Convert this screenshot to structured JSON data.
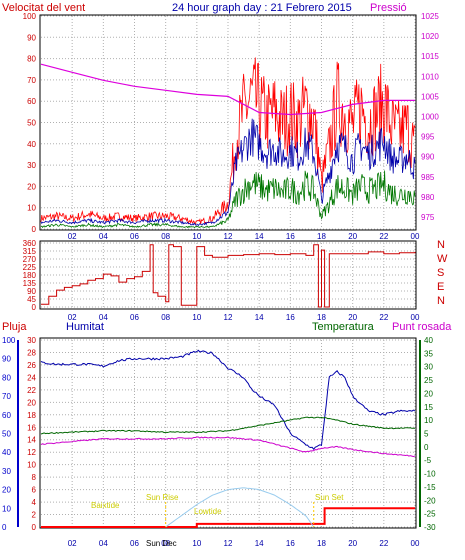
{
  "header": {
    "left_label": "Velocitat del vent",
    "title": "24 hour graph day : 21 Febrero 2015",
    "right_label": "Pressió"
  },
  "colors": {
    "wind_gust": "#ff0000",
    "wind_avg": "#0000aa",
    "wind_low": "#007700",
    "pressure": "#dd00dd",
    "direction": "#cc0000",
    "humidity": "#0000aa",
    "temperature": "#006600",
    "dewpoint": "#cc00cc",
    "rain": "#ff0000",
    "solar": "#99ccee",
    "sun_markers": "#ffcc00",
    "axis_left": "#cc0000",
    "axis_right_pressure": "#cc00cc",
    "axis_humidity": "#0000cc",
    "axis_temp": "#006600",
    "grid": "#b0b0b0"
  },
  "x_ticks": [
    "02",
    "04",
    "06",
    "08",
    "10",
    "12",
    "14",
    "16",
    "18",
    "20",
    "22",
    "00"
  ],
  "chart_data": [
    {
      "type": "line",
      "name": "wind-and-pressure",
      "x_unit": "hour",
      "x_range": [
        0,
        24
      ],
      "y_left_label": "Velocitat del vent",
      "y_left_range": [
        0,
        100
      ],
      "y_left_ticks": [
        0,
        10,
        20,
        30,
        40,
        50,
        60,
        70,
        80,
        90,
        100
      ],
      "y_right_label": "Pressió",
      "y_right_range": [
        972,
        1025
      ],
      "y_right_ticks": [
        975,
        980,
        985,
        990,
        995,
        1000,
        1005,
        1010,
        1015,
        1020,
        1025
      ],
      "grid": true,
      "series": [
        {
          "key": "gust",
          "axis": "left",
          "x": [
            0,
            1,
            2,
            3,
            4,
            5,
            6,
            7,
            8,
            9,
            10,
            11,
            12,
            12.5,
            13,
            13.5,
            14,
            14.5,
            15,
            15.5,
            16,
            16.5,
            17,
            17.5,
            18,
            18.5,
            19,
            19.5,
            20,
            20.5,
            21,
            21.5,
            22,
            22.5,
            23,
            23.5,
            24
          ],
          "y": [
            5,
            6,
            5,
            7,
            5,
            6,
            5,
            6,
            6,
            5,
            3,
            5,
            12,
            42,
            55,
            62,
            58,
            52,
            55,
            50,
            54,
            50,
            57,
            52,
            22,
            38,
            60,
            55,
            48,
            58,
            50,
            54,
            60,
            48,
            45,
            48,
            38
          ]
        },
        {
          "key": "average",
          "axis": "left",
          "x": [
            0,
            1,
            2,
            3,
            4,
            5,
            6,
            7,
            8,
            9,
            10,
            11,
            12,
            12.5,
            13,
            13.5,
            14,
            14.5,
            15,
            15.5,
            16,
            16.5,
            17,
            17.5,
            18,
            18.5,
            19,
            19.5,
            20,
            20.5,
            21,
            21.5,
            22,
            22.5,
            23,
            23.5,
            24
          ],
          "y": [
            3,
            4,
            3,
            4,
            3,
            4,
            3,
            4,
            4,
            3,
            2,
            3,
            8,
            30,
            38,
            44,
            40,
            36,
            38,
            34,
            37,
            34,
            40,
            36,
            14,
            26,
            40,
            38,
            32,
            40,
            35,
            38,
            42,
            33,
            32,
            34,
            28
          ]
        },
        {
          "key": "low",
          "axis": "left",
          "x": [
            0,
            1,
            2,
            3,
            4,
            5,
            6,
            7,
            8,
            9,
            10,
            11,
            12,
            12.5,
            13,
            13.5,
            14,
            14.5,
            15,
            15.5,
            16,
            16.5,
            17,
            17.5,
            18,
            18.5,
            19,
            19.5,
            20,
            20.5,
            21,
            21.5,
            22,
            22.5,
            23,
            23.5,
            24
          ],
          "y": [
            1,
            2,
            1,
            2,
            1,
            2,
            1,
            2,
            2,
            1,
            1,
            1,
            4,
            14,
            18,
            22,
            20,
            18,
            19,
            17,
            19,
            17,
            21,
            18,
            6,
            12,
            20,
            19,
            16,
            20,
            18,
            19,
            21,
            17,
            16,
            17,
            15
          ]
        },
        {
          "key": "pressure",
          "axis": "right",
          "x": [
            0,
            2,
            4,
            6,
            8,
            10,
            12,
            14,
            16,
            18,
            19,
            20,
            22,
            24
          ],
          "y": [
            1013,
            1011,
            1009,
            1007.5,
            1006.5,
            1005.5,
            1005,
            1001,
            1000.5,
            1001,
            1002,
            1003,
            1004,
            1004
          ]
        }
      ]
    },
    {
      "type": "line",
      "name": "wind-direction",
      "x_range": [
        0,
        24
      ],
      "y_range": [
        0,
        360
      ],
      "y_ticks": [
        0,
        45,
        90,
        135,
        180,
        225,
        270,
        315,
        360
      ],
      "y_tick_labels": [
        "0",
        "45",
        "90",
        "135",
        "180",
        "225",
        "270",
        "315",
        "360"
      ],
      "compass_labels": [
        "N",
        "W",
        "S",
        "E",
        "N"
      ],
      "series": [
        {
          "key": "direction",
          "x": [
            0,
            0.5,
            1,
            1.5,
            2,
            2.5,
            3,
            3.5,
            4,
            4.5,
            5,
            5.5,
            6,
            6.5,
            7,
            7.2,
            7.5,
            8,
            8.2,
            8.5,
            9,
            9.5,
            10,
            10.5,
            11,
            12,
            13,
            14,
            15,
            16,
            17,
            17.5,
            17.8,
            18,
            18.2,
            18.5,
            19,
            20,
            21,
            22,
            23,
            24
          ],
          "y": [
            15,
            60,
            95,
            110,
            120,
            130,
            150,
            160,
            185,
            175,
            140,
            160,
            170,
            200,
            350,
            80,
            60,
            30,
            350,
            340,
            10,
            10,
            340,
            290,
            280,
            290,
            295,
            300,
            295,
            300,
            290,
            350,
            0,
            320,
            0,
            300,
            300,
            300,
            310,
            300,
            305,
            310
          ]
        }
      ]
    },
    {
      "type": "line",
      "name": "humidity-temperature-rain",
      "x_range": [
        0,
        24
      ],
      "labels": {
        "rain": "Pluja",
        "humidity": "Humitat",
        "temperature": "Temperatura",
        "dewpoint": "Punt rosada"
      },
      "humidity_axis": {
        "range": [
          0,
          100
        ],
        "ticks": [
          0,
          10,
          20,
          30,
          40,
          50,
          60,
          70,
          80,
          90,
          100
        ]
      },
      "rain_axis": {
        "range": [
          0,
          30
        ],
        "ticks": [
          0,
          2,
          4,
          6,
          8,
          10,
          12,
          14,
          16,
          18,
          20,
          22,
          24,
          26,
          28,
          30
        ]
      },
      "temp_axis": {
        "range": [
          -30,
          40
        ],
        "ticks": [
          -30,
          -25,
          -20,
          -15,
          -10,
          -5,
          0,
          5,
          10,
          15,
          20,
          25,
          30,
          35,
          40
        ]
      },
      "series": [
        {
          "key": "humidity",
          "axis": "humidity",
          "x": [
            0,
            1,
            2,
            3,
            4,
            5,
            6,
            7,
            8,
            9,
            10,
            11,
            12,
            13,
            13.5,
            14,
            15,
            16,
            17,
            17.5,
            18,
            18.5,
            19,
            19.5,
            20,
            21,
            22,
            23,
            24
          ],
          "y": [
            88,
            87,
            87,
            87,
            86,
            89,
            90,
            90,
            90,
            91,
            94,
            93,
            85,
            80,
            74,
            70,
            65,
            50,
            44,
            42,
            44,
            80,
            83,
            80,
            70,
            62,
            60,
            62,
            62
          ]
        },
        {
          "key": "temperature",
          "axis": "temp",
          "x": [
            0,
            2,
            4,
            6,
            8,
            10,
            12,
            14,
            16,
            17,
            18,
            19,
            20,
            22,
            24
          ],
          "y": [
            5,
            5.5,
            6,
            6,
            5.5,
            5.5,
            6,
            8,
            10,
            11,
            11,
            10,
            8.5,
            7,
            7
          ]
        },
        {
          "key": "dewpoint",
          "axis": "temp",
          "x": [
            0,
            2,
            4,
            6,
            8,
            10,
            12,
            14,
            15,
            16,
            17,
            18,
            19,
            20,
            22,
            24
          ],
          "y": [
            1,
            2,
            3,
            3,
            3,
            3.5,
            3.5,
            2.5,
            1,
            -0.5,
            -2,
            -0.5,
            0,
            -1,
            -2.5,
            -3.5
          ]
        },
        {
          "key": "rain",
          "axis": "rain",
          "x": [
            0,
            2,
            4,
            6,
            8,
            10,
            11,
            12,
            14,
            16,
            17,
            18,
            18.2,
            20,
            22,
            24
          ],
          "y": [
            0,
            0,
            0,
            0,
            0,
            0.5,
            0.5,
            0.5,
            0.5,
            0.5,
            0.5,
            0.5,
            3,
            3,
            3,
            3
          ]
        },
        {
          "key": "solar",
          "axis": "humidity",
          "x": [
            8,
            9,
            10,
            11,
            12,
            13,
            14,
            15,
            16,
            17,
            17.5
          ],
          "y": [
            0,
            6,
            12,
            17,
            20,
            21,
            20,
            17,
            12,
            6,
            0
          ]
        }
      ],
      "annotations": [
        {
          "label": "Sun Rise",
          "x": 8
        },
        {
          "label": "Sun Set",
          "x": 17.5
        },
        {
          "label": "Sun Dec",
          "x": 8
        }
      ],
      "lowtide_labels": [
        "Baixtide",
        "Lowtide"
      ]
    }
  ]
}
